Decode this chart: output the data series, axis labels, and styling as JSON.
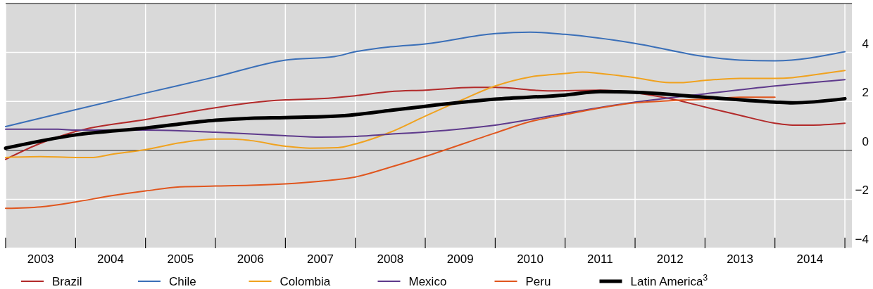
{
  "chart_data": {
    "type": "line",
    "xlim": [
      2003,
      2015.1
    ],
    "ylim": [
      -4,
      6
    ],
    "xticks": [
      {
        "value": 2003,
        "label": null
      },
      {
        "value": 2004,
        "label": null
      },
      {
        "value": 2005,
        "label": null
      },
      {
        "value": 2006,
        "label": null
      },
      {
        "value": 2007,
        "label": null
      },
      {
        "value": 2008,
        "label": null
      },
      {
        "value": 2009,
        "label": null
      },
      {
        "value": 2010,
        "label": null
      },
      {
        "value": 2011,
        "label": null
      },
      {
        "value": 2012,
        "label": null
      },
      {
        "value": 2013,
        "label": null
      },
      {
        "value": 2014,
        "label": null
      },
      {
        "value": 2015,
        "label": null
      },
      {
        "value": 2003.5,
        "label": "2003"
      },
      {
        "value": 2004.5,
        "label": "2004"
      },
      {
        "value": 2005.5,
        "label": "2005"
      },
      {
        "value": 2006.5,
        "label": "2006"
      },
      {
        "value": 2007.5,
        "label": "2007"
      },
      {
        "value": 2008.5,
        "label": "2008"
      },
      {
        "value": 2009.5,
        "label": "2009"
      },
      {
        "value": 2010.5,
        "label": "2010"
      },
      {
        "value": 2011.5,
        "label": "2011"
      },
      {
        "value": 2012.5,
        "label": "2012"
      },
      {
        "value": 2013.5,
        "label": "2013"
      },
      {
        "value": 2014.5,
        "label": "2014"
      }
    ],
    "yticks": [
      4,
      2,
      0,
      {
        "value": -2,
        "label": "−2"
      },
      {
        "value": -4,
        "label": "−4"
      }
    ],
    "grid": true,
    "legend": "bottom",
    "line_style": "solid",
    "ref_lines": [
      {
        "axis": "y",
        "value": 0,
        "color": "#000000"
      }
    ],
    "series": [
      {
        "name": "Brazil",
        "color": "#b22a2a",
        "x": [
          2003,
          2003.45,
          2004,
          2005,
          2006,
          2006.5,
          2007,
          2007.5,
          2008,
          2008.5,
          2009,
          2009.7,
          2010,
          2010.75,
          2011.5,
          2012.45,
          2013,
          2013.5,
          2014,
          2014.25,
          2014.5,
          2015
        ],
        "values": [
          -0.37,
          0.23,
          0.77,
          1.26,
          1.74,
          1.94,
          2.06,
          2.11,
          2.23,
          2.4,
          2.46,
          2.57,
          2.57,
          2.43,
          2.46,
          2.14,
          1.77,
          1.43,
          1.11,
          1.03,
          1.03,
          1.11
        ]
      },
      {
        "name": "Chile",
        "color": "#3a6fb8",
        "x": [
          2003,
          2004,
          2005,
          2006,
          2007,
          2007.7,
          2008,
          2008.5,
          2009,
          2010,
          2010.5,
          2011,
          2012,
          2013,
          2013.5,
          2014,
          2015
        ],
        "values": [
          0.97,
          1.66,
          2.34,
          3.0,
          3.69,
          3.83,
          4.03,
          4.23,
          4.35,
          4.77,
          4.83,
          4.74,
          4.37,
          3.83,
          3.69,
          3.66,
          4.03
        ]
      },
      {
        "name": "Colombia",
        "color": "#f0a21e",
        "x": [
          2003,
          2003.5,
          2004,
          2004.25,
          2004.5,
          2005,
          2005.5,
          2006,
          2006.25,
          2006.5,
          2007,
          2007.35,
          2007.75,
          2008,
          2008.5,
          2009,
          2009.5,
          2010,
          2010.5,
          2011,
          2011.25,
          2011.5,
          2012,
          2012.5,
          2012.65,
          2013,
          2013.5,
          2014,
          2014.25,
          2014.5,
          2015
        ],
        "values": [
          -0.29,
          -0.26,
          -0.29,
          -0.29,
          -0.17,
          0.03,
          0.31,
          0.46,
          0.46,
          0.4,
          0.17,
          0.09,
          0.11,
          0.26,
          0.74,
          1.4,
          2.03,
          2.63,
          3.0,
          3.14,
          3.2,
          3.14,
          2.97,
          2.77,
          2.77,
          2.86,
          2.94,
          2.94,
          2.97,
          3.06,
          3.26
        ]
      },
      {
        "name": "Mexico",
        "color": "#5e3a8c",
        "x": [
          2003,
          2003.75,
          2004,
          2005,
          2006,
          2007,
          2007.5,
          2008,
          2008.5,
          2009,
          2010,
          2011,
          2012,
          2013,
          2014,
          2015
        ],
        "values": [
          0.86,
          0.86,
          0.83,
          0.83,
          0.74,
          0.6,
          0.54,
          0.57,
          0.66,
          0.75,
          1.03,
          1.51,
          1.97,
          2.31,
          2.63,
          2.89
        ]
      },
      {
        "name": "Peru",
        "color": "#e0561e",
        "x": [
          2003,
          2003.5,
          2004,
          2004.5,
          2005,
          2005.5,
          2006,
          2006.5,
          2007,
          2007.5,
          2008,
          2008.5,
          2009,
          2010,
          2010.5,
          2011,
          2012,
          2012.5,
          2013,
          2013.5,
          2014
        ],
        "values": [
          -2.37,
          -2.31,
          -2.11,
          -1.86,
          -1.66,
          -1.49,
          -1.46,
          -1.43,
          -1.37,
          -1.26,
          -1.09,
          -0.69,
          -0.25,
          0.71,
          1.17,
          1.46,
          1.94,
          2.03,
          2.09,
          2.17,
          2.17
        ]
      },
      {
        "name": "Latin America$^{3}$",
        "color": "#000000",
        "x": [
          2003,
          2004,
          2005,
          2006,
          2006.5,
          2007,
          2007.75,
          2008,
          2008.5,
          2009,
          2010,
          2011,
          2011.5,
          2012,
          2013,
          2014,
          2014.25,
          2015
        ],
        "values": [
          0.09,
          0.63,
          0.91,
          1.23,
          1.31,
          1.34,
          1.4,
          1.46,
          1.63,
          1.8,
          2.09,
          2.26,
          2.4,
          2.37,
          2.17,
          1.97,
          1.94,
          2.11
        ]
      }
    ]
  }
}
